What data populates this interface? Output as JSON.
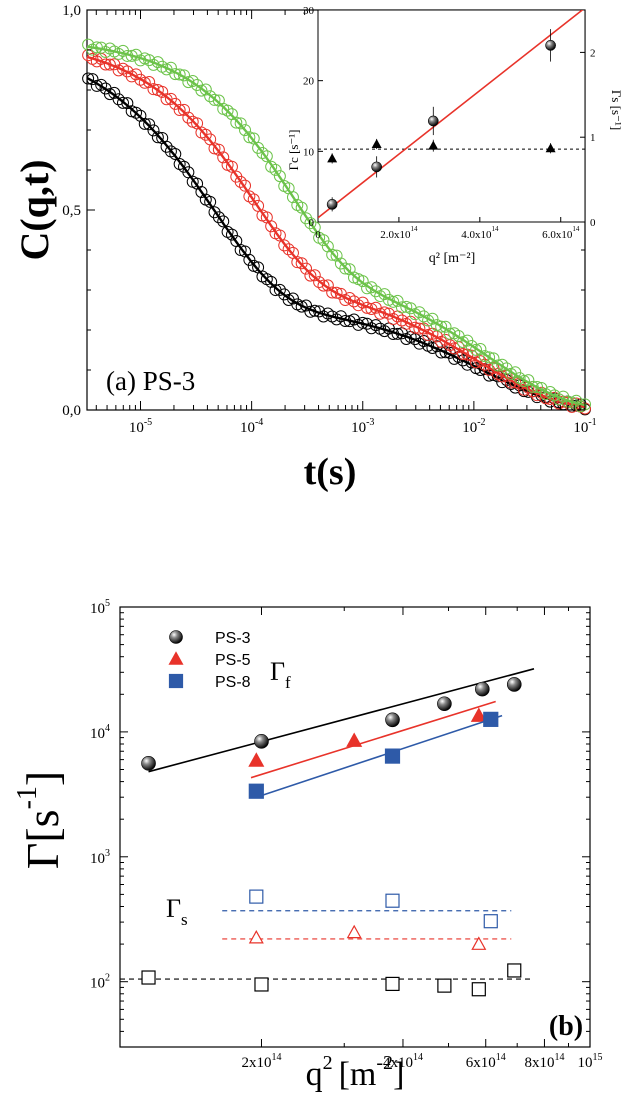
{
  "chart_data": [
    {
      "id": "panel_a",
      "type": "line",
      "panel_label": "(a) PS-3",
      "xlabel": "t(s)",
      "ylabel": "C(q,t)",
      "xscale": "log",
      "xlim": [
        3.3e-06,
        0.1
      ],
      "ylim": [
        0,
        1
      ],
      "xtick_labels": [
        {
          "v": 1e-05,
          "base": "10",
          "exp": "-5"
        },
        {
          "v": 0.0001,
          "base": "10",
          "exp": "-4"
        },
        {
          "v": 0.001,
          "base": "10",
          "exp": "-3"
        },
        {
          "v": 0.01,
          "base": "10",
          "exp": "-2"
        },
        {
          "v": 0.1,
          "base": "10",
          "exp": "-1"
        }
      ],
      "ytick_labels": [
        {
          "v": 0,
          "text": "0,0"
        },
        {
          "v": 0.5,
          "text": "0,5"
        },
        {
          "v": 1,
          "text": "1,0"
        }
      ],
      "series": [
        {
          "color": "#000000",
          "tau_f": 4.5e-05,
          "amp_f": 0.66,
          "tau_s": 0.012,
          "amp_s": 0.27,
          "beta": 0.7
        },
        {
          "color": "#e8332a",
          "tau_f": 0.0001,
          "amp_f": 0.6,
          "tau_s": 0.011,
          "amp_s": 0.33,
          "beta": 0.75
        },
        {
          "color": "#6cc34a",
          "tau_f": 0.00022,
          "amp_f": 0.56,
          "tau_s": 0.013,
          "amp_s": 0.37,
          "beta": 0.8
        }
      ]
    },
    {
      "id": "panel_a_inset",
      "type": "scatter",
      "xlabel": "q² [m⁻²]",
      "ylabel_left": "Γc [s⁻¹]",
      "ylabel_right": "Γs [s⁻¹]",
      "xlim": [
        0,
        660000000000000.0
      ],
      "ylim_left": [
        0,
        30
      ],
      "ylim_right": [
        0,
        2.5
      ],
      "xtick_labels": [
        {
          "v": 0,
          "text": "0"
        },
        {
          "v": 200000000000000.0,
          "text": "2.0x10",
          "exp": "14"
        },
        {
          "v": 400000000000000.0,
          "text": "4.0x10",
          "exp": "14"
        },
        {
          "v": 600000000000000.0,
          "text": "6.0x10",
          "exp": "14"
        }
      ],
      "ytick_labels_left": [
        "0",
        "10",
        "20",
        "30"
      ],
      "ytick_labels_right": [
        "0",
        "1",
        "2"
      ],
      "gamma_c": {
        "x": [
          35000000000000.0,
          145000000000000.0,
          285000000000000.0,
          575000000000000.0
        ],
        "y": [
          2.5,
          7.8,
          14.3,
          25.0
        ],
        "err": [
          1.0,
          1.5,
          2.0,
          2.3
        ],
        "fit": [
          [
            0,
            0.6
          ],
          [
            660000000000000.0,
            30.3
          ]
        ]
      },
      "gamma_s": {
        "x": [
          35000000000000.0,
          145000000000000.0,
          285000000000000.0,
          575000000000000.0
        ],
        "y": [
          0.75,
          0.92,
          0.9,
          0.87
        ],
        "err": [
          0.06,
          0.06,
          0.07,
          0.06
        ],
        "mean": 0.86
      }
    },
    {
      "id": "panel_b",
      "type": "scatter",
      "panel_label": "(b)",
      "xlabel_base": "q",
      "xlabel_sup": "2",
      "xlabel_unit": "[m",
      "xlabel_unit_sup": "-2",
      "xlabel_close": "]",
      "ylabel_base": "Γ[s",
      "ylabel_sup": "-1",
      "ylabel_close": "]",
      "xscale": "log",
      "yscale": "log",
      "xlim": [
        100000000000000.0,
        1000000000000000.0
      ],
      "ylim": [
        30,
        100000.0
      ],
      "xtick_labels": [
        {
          "v": 200000000000000.0,
          "base": "2x10",
          "exp": "14"
        },
        {
          "v": 400000000000000.0,
          "base": "4x10",
          "exp": "14"
        },
        {
          "v": 600000000000000.0,
          "base": "6x10",
          "exp": "14"
        },
        {
          "v": 800000000000000.0,
          "base": "8x10",
          "exp": "14"
        },
        {
          "v": 1000000000000000.0,
          "base": "10",
          "exp": "15"
        }
      ],
      "ytick_labels": [
        {
          "v": 100,
          "base": "10",
          "exp": "2"
        },
        {
          "v": 1000,
          "base": "10",
          "exp": "3"
        },
        {
          "v": 10000,
          "base": "10",
          "exp": "4"
        },
        {
          "v": 100000,
          "base": "10",
          "exp": "5"
        }
      ],
      "annotations": {
        "gamma_f": "Γ",
        "gamma_f_sub": "f",
        "gamma_s": "Γ",
        "gamma_s_sub": "s"
      },
      "series": [
        {
          "name": "PS-3",
          "marker": "sphere",
          "color": "#000000",
          "fast": {
            "x": [
              115000000000000.0,
              200000000000000.0,
              380000000000000.0,
              490000000000000.0,
              590000000000000.0,
              690000000000000.0
            ],
            "y": [
              5600,
              8400,
              12500,
              16800,
              22000,
              24000
            ]
          },
          "fast_fit": [
            [
              115000000000000.0,
              4800
            ],
            [
              760000000000000.0,
              32000
            ]
          ],
          "slow": {
            "x": [
              115000000000000.0,
              200000000000000.0,
              380000000000000.0,
              490000000000000.0,
              580000000000000.0,
              690000000000000.0
            ],
            "y": [
              108,
              95,
              96,
              93,
              87,
              123
            ]
          },
          "slow_mean": 105
        },
        {
          "name": "PS-5",
          "marker": "triangle",
          "color": "#e8332a",
          "fast": {
            "x": [
              195000000000000.0,
              315000000000000.0,
              580000000000000.0
            ],
            "y": [
              5900,
              8500,
              13500
            ]
          },
          "fast_fit": [
            [
              190000000000000.0,
              4300
            ],
            [
              630000000000000.0,
              17500
            ]
          ],
          "slow": {
            "x": [
              195000000000000.0,
              315000000000000.0,
              580000000000000.0
            ],
            "y": [
              225,
              248,
              200
            ]
          },
          "slow_mean": 220
        },
        {
          "name": "PS-8",
          "marker": "square",
          "color": "#2e5aa8",
          "fast": {
            "x": [
              195000000000000.0,
              380000000000000.0,
              615000000000000.0
            ],
            "y": [
              3350,
              6400,
              12600
            ]
          },
          "fast_fit": [
            [
              195000000000000.0,
              3000
            ],
            [
              650000000000000.0,
              13500
            ]
          ],
          "slow": {
            "x": [
              195000000000000.0,
              380000000000000.0,
              615000000000000.0
            ],
            "y": [
              480,
              445,
              305
            ]
          },
          "slow_mean": 370
        }
      ]
    }
  ]
}
